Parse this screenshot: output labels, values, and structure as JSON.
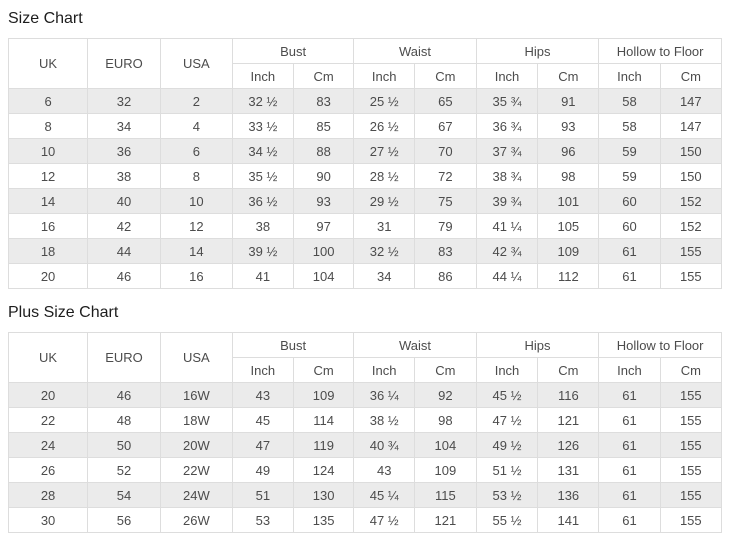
{
  "colors": {
    "stripe_row": "#ebebeb",
    "default_row": "#ffffff",
    "border": "#dddddd",
    "cell_text": "#4c4c4c",
    "title_text": "#1d1d1d"
  },
  "charts": [
    {
      "title": "Size Chart",
      "header": {
        "simple_columns": [
          "UK",
          "EURO",
          "USA"
        ],
        "group_columns": [
          {
            "label": "Bust",
            "sub": [
              "Inch",
              "Cm"
            ]
          },
          {
            "label": "Waist",
            "sub": [
              "Inch",
              "Cm"
            ]
          },
          {
            "label": "Hips",
            "sub": [
              "Inch",
              "Cm"
            ]
          },
          {
            "label": "Hollow to Floor",
            "sub": [
              "Inch",
              "Cm"
            ]
          }
        ]
      },
      "rows": [
        [
          "6",
          "32",
          "2",
          "32 ½",
          "83",
          "25 ½",
          "65",
          "35 ¾",
          "91",
          "58",
          "147"
        ],
        [
          "8",
          "34",
          "4",
          "33 ½",
          "85",
          "26 ½",
          "67",
          "36 ¾",
          "93",
          "58",
          "147"
        ],
        [
          "10",
          "36",
          "6",
          "34 ½",
          "88",
          "27 ½",
          "70",
          "37 ¾",
          "96",
          "59",
          "150"
        ],
        [
          "12",
          "38",
          "8",
          "35 ½",
          "90",
          "28 ½",
          "72",
          "38 ¾",
          "98",
          "59",
          "150"
        ],
        [
          "14",
          "40",
          "10",
          "36 ½",
          "93",
          "29 ½",
          "75",
          "39 ¾",
          "101",
          "60",
          "152"
        ],
        [
          "16",
          "42",
          "12",
          "38",
          "97",
          "31",
          "79",
          "41 ¼",
          "105",
          "60",
          "152"
        ],
        [
          "18",
          "44",
          "14",
          "39 ½",
          "100",
          "32 ½",
          "83",
          "42 ¾",
          "109",
          "61",
          "155"
        ],
        [
          "20",
          "46",
          "16",
          "41",
          "104",
          "34",
          "86",
          "44 ¼",
          "112",
          "61",
          "155"
        ]
      ]
    },
    {
      "title": "Plus Size Chart",
      "header": {
        "simple_columns": [
          "UK",
          "EURO",
          "USA"
        ],
        "group_columns": [
          {
            "label": "Bust",
            "sub": [
              "Inch",
              "Cm"
            ]
          },
          {
            "label": "Waist",
            "sub": [
              "Inch",
              "Cm"
            ]
          },
          {
            "label": "Hips",
            "sub": [
              "Inch",
              "Cm"
            ]
          },
          {
            "label": "Hollow to Floor",
            "sub": [
              "Inch",
              "Cm"
            ]
          }
        ]
      },
      "rows": [
        [
          "20",
          "46",
          "16W",
          "43",
          "109",
          "36 ¼",
          "92",
          "45 ½",
          "116",
          "61",
          "155"
        ],
        [
          "22",
          "48",
          "18W",
          "45",
          "114",
          "38 ½",
          "98",
          "47 ½",
          "121",
          "61",
          "155"
        ],
        [
          "24",
          "50",
          "20W",
          "47",
          "119",
          "40 ¾",
          "104",
          "49 ½",
          "126",
          "61",
          "155"
        ],
        [
          "26",
          "52",
          "22W",
          "49",
          "124",
          "43",
          "109",
          "51 ½",
          "131",
          "61",
          "155"
        ],
        [
          "28",
          "54",
          "24W",
          "51",
          "130",
          "45 ¼",
          "115",
          "53 ½",
          "136",
          "61",
          "155"
        ],
        [
          "30",
          "56",
          "26W",
          "53",
          "135",
          "47 ½",
          "121",
          "55 ½",
          "141",
          "61",
          "155"
        ]
      ]
    }
  ]
}
